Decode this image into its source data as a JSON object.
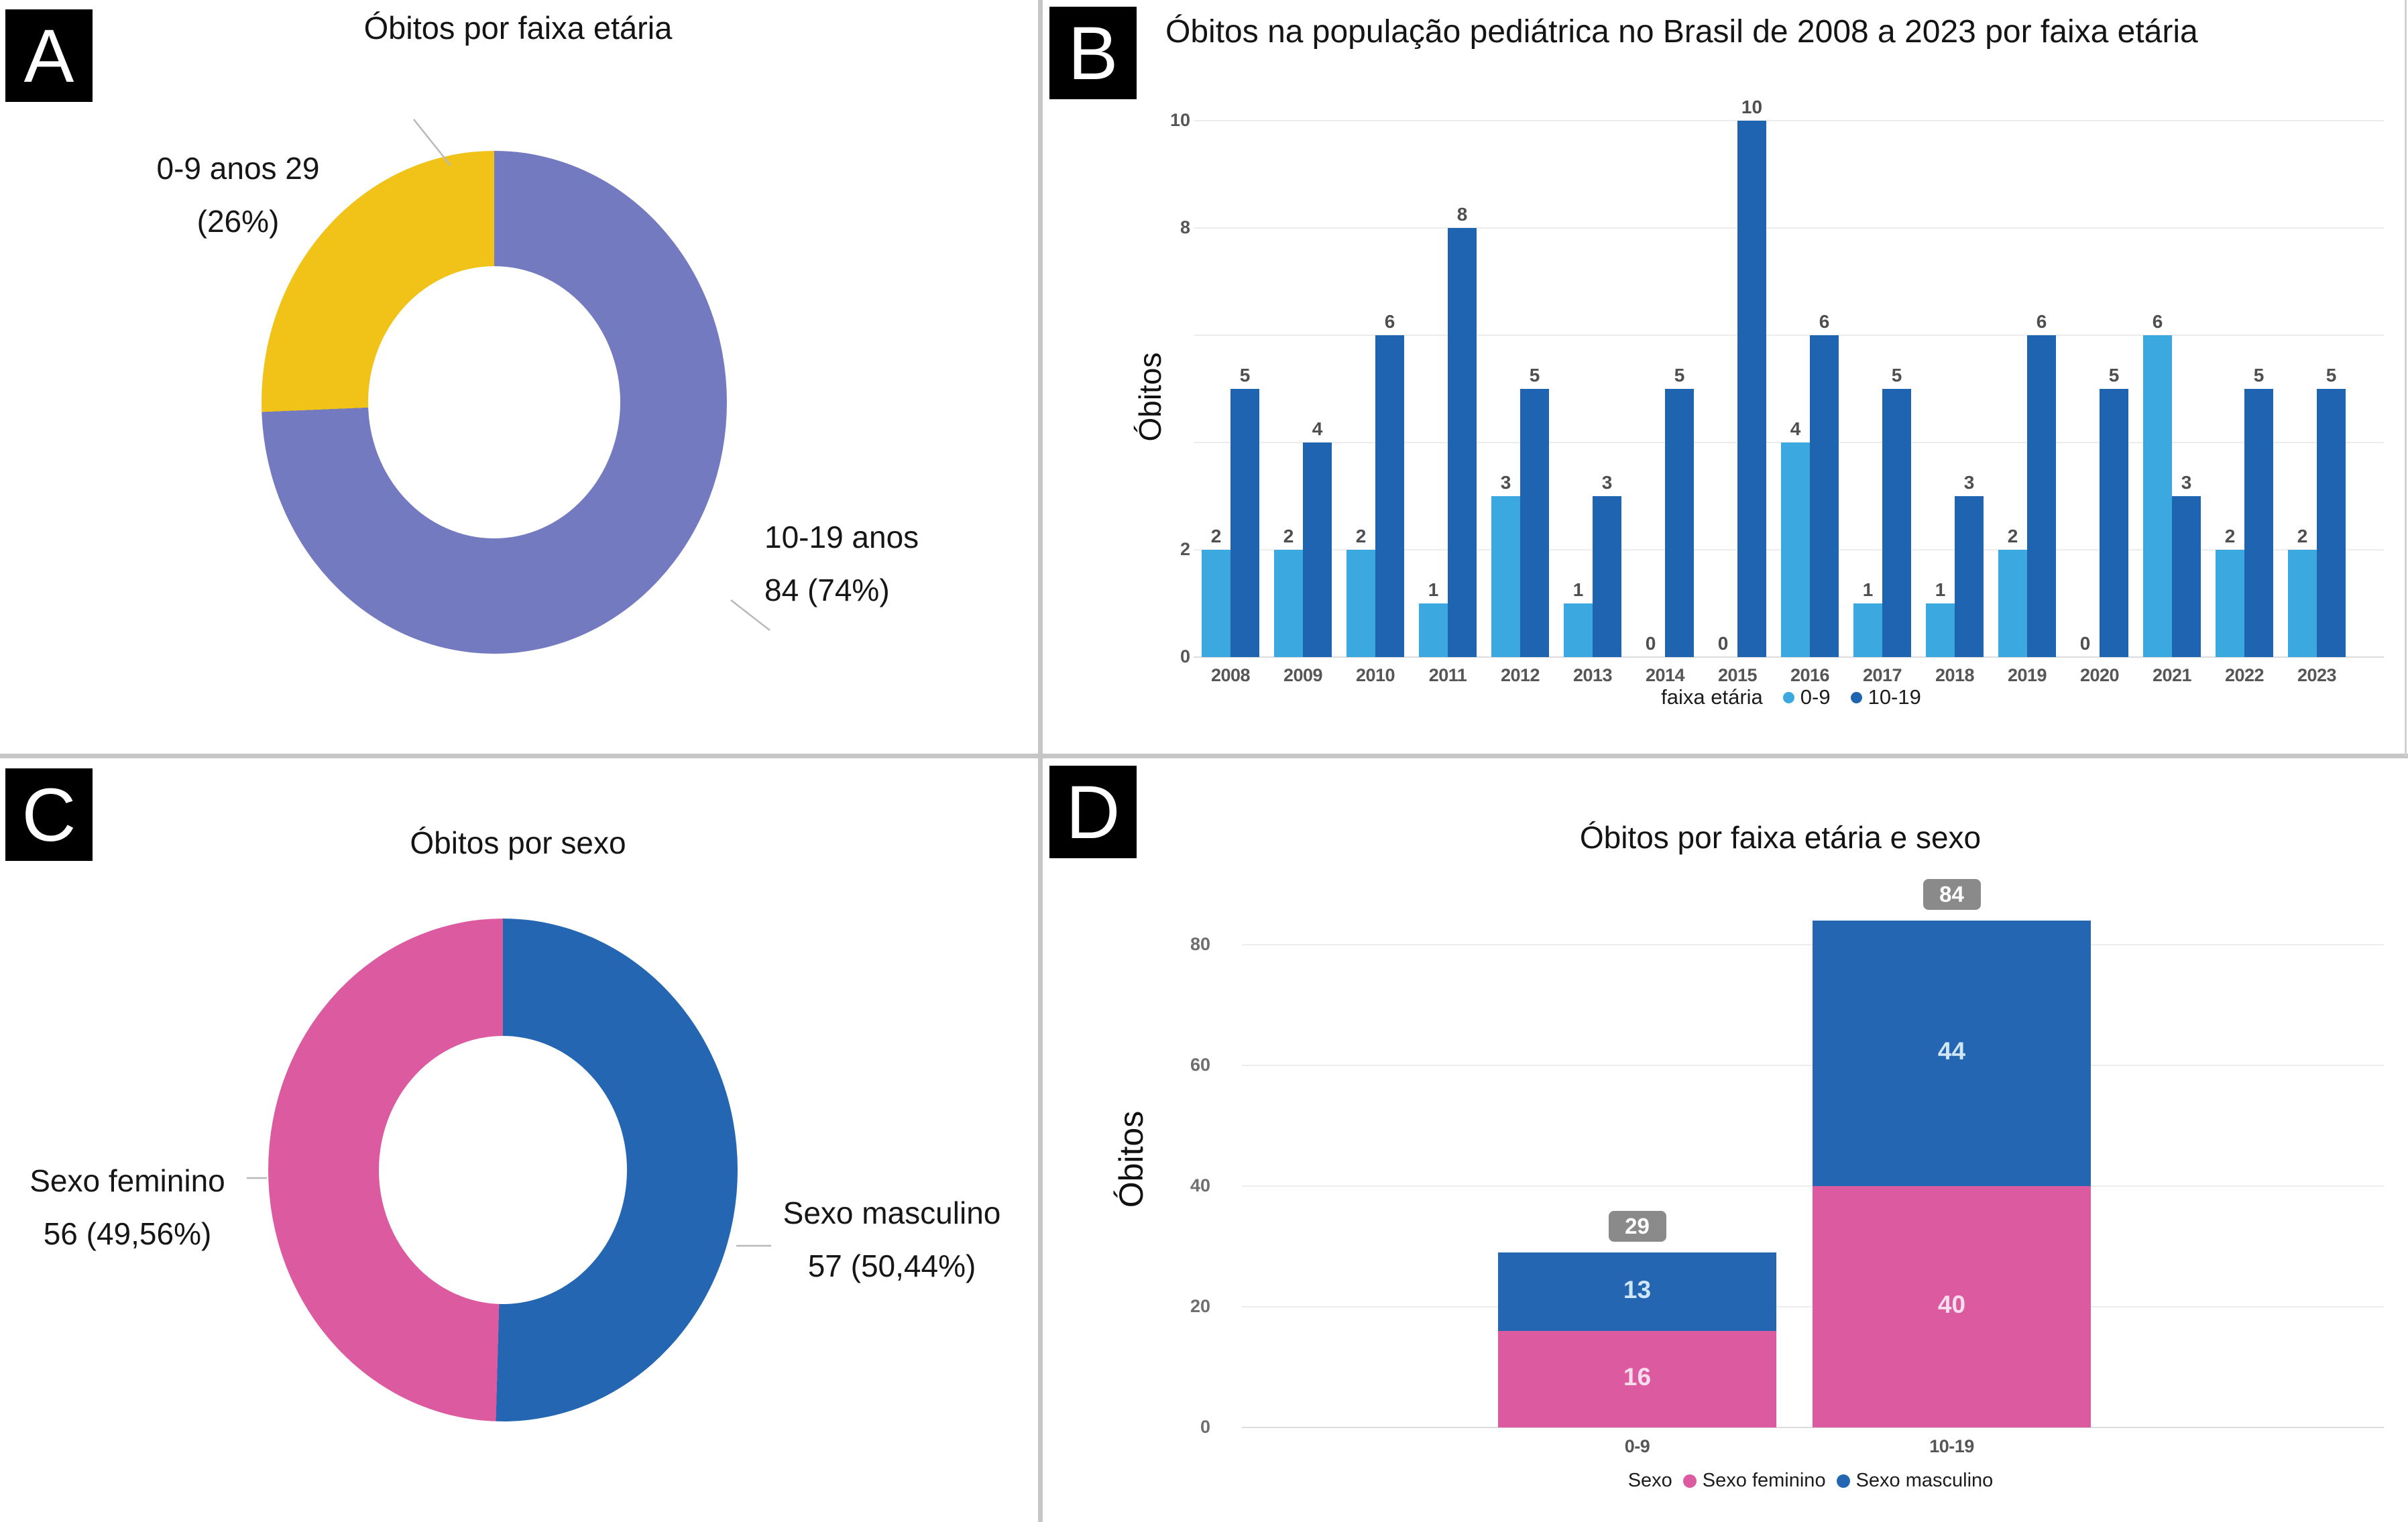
{
  "panel_letters": [
    "A",
    "B",
    "C",
    "D"
  ],
  "chart_data": [
    {
      "panel": "A",
      "type": "pie",
      "subtype": "donut",
      "title": "Óbitos por faixa etária",
      "slices": [
        {
          "label": "10-19 anos",
          "value": 84,
          "pct_label": "74%",
          "color": "#747AC0",
          "label_lines": [
            "10-19 anos",
            "84 (74%)"
          ]
        },
        {
          "label": "0-9 anos",
          "value": 29,
          "pct_label": "26%",
          "color": "#F1C217",
          "label_lines": [
            "0-9 anos 29",
            "(26%)"
          ]
        }
      ]
    },
    {
      "panel": "B",
      "type": "bar",
      "title": "Óbitos na população pediátrica no Brasil de 2008 a 2023 por faixa etária",
      "ylabel": "Óbitos",
      "legend_title": "faixa etária",
      "categories": [
        "2008",
        "2009",
        "2010",
        "2011",
        "2012",
        "2013",
        "2014",
        "2015",
        "2016",
        "2017",
        "2018",
        "2019",
        "2020",
        "2021",
        "2022",
        "2023"
      ],
      "series": [
        {
          "name": "0-9",
          "color": "#3BA8E0",
          "values": [
            2,
            2,
            2,
            1,
            3,
            1,
            0,
            0,
            4,
            1,
            1,
            2,
            0,
            6,
            2,
            2
          ]
        },
        {
          "name": "10-19",
          "color": "#1F64B0",
          "values": [
            5,
            4,
            6,
            8,
            5,
            3,
            5,
            10,
            6,
            5,
            3,
            6,
            5,
            3,
            5,
            5
          ]
        }
      ],
      "ylim": [
        0,
        10
      ],
      "yticks_labeled": [
        0,
        2,
        8,
        10
      ],
      "grid": true,
      "legend_position": "bottom"
    },
    {
      "panel": "C",
      "type": "pie",
      "subtype": "donut",
      "title": "Óbitos por sexo",
      "slices": [
        {
          "label": "Sexo masculino",
          "value": 57,
          "pct_label": "50,44%",
          "color": "#2566B2",
          "label_lines": [
            "Sexo masculino",
            "57 (50,44%)"
          ]
        },
        {
          "label": "Sexo feminino",
          "value": 56,
          "pct_label": "49,56%",
          "color": "#DC5AA0",
          "label_lines": [
            "Sexo feminino",
            "56 (49,56%)"
          ]
        }
      ]
    },
    {
      "panel": "D",
      "type": "stacked-bar",
      "title": "Óbitos por faixa etária e sexo",
      "ylabel": "Óbitos",
      "legend_title": "Sexo",
      "categories": [
        "0-9",
        "10-19"
      ],
      "series": [
        {
          "name": "Sexo feminino",
          "color": "#DC5AA0",
          "label_color": "#F6DEEC",
          "values": [
            16,
            40
          ]
        },
        {
          "name": "Sexo masculino",
          "color": "#2566B2",
          "label_color": "#CFE7F8",
          "values": [
            13,
            44
          ]
        }
      ],
      "totals": [
        29,
        84
      ],
      "total_badge_color": "#8A8A8A",
      "yticks": [
        0,
        20,
        40,
        60,
        80
      ],
      "ylim": [
        0,
        88
      ],
      "grid": true,
      "legend_position": "bottom"
    }
  ]
}
